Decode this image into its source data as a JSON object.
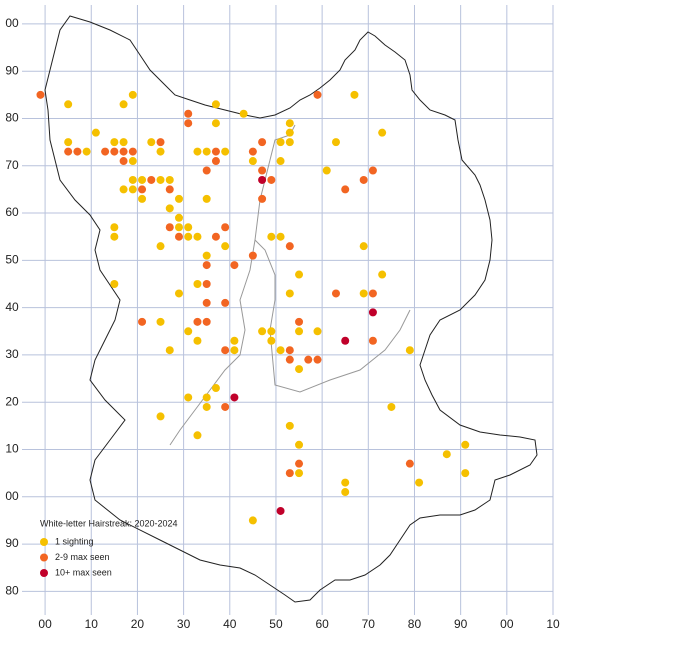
{
  "chart_data": {
    "type": "scatter",
    "legend_title": "White-letter Hairstreak:  2020-2024",
    "xlim": [
      -5,
      110
    ],
    "ylim": [
      -25,
      104
    ],
    "xticks": [
      {
        "value": 0,
        "label": "00"
      },
      10,
      20,
      30,
      40,
      50,
      60,
      70,
      80,
      90,
      {
        "value": 100,
        "label": "00"
      },
      {
        "value": 110,
        "label": "10"
      }
    ],
    "yticks": [
      {
        "value": 100,
        "label": "00"
      },
      90,
      80,
      70,
      60,
      50,
      40,
      30,
      20,
      10,
      {
        "value": 0,
        "label": "00"
      },
      {
        "value": -10,
        "label": "90"
      },
      {
        "value": -20,
        "label": "80"
      }
    ],
    "grid": true,
    "series": [
      {
        "name": "1 sighting",
        "color": "#f5c000",
        "x": [
          5,
          5,
          9,
          11,
          15,
          17,
          17,
          19,
          19,
          19,
          21,
          19,
          17,
          21,
          23,
          25,
          25,
          27,
          29,
          29,
          29,
          31,
          31,
          33,
          27,
          15,
          15,
          15,
          25,
          29,
          33,
          35,
          33,
          35,
          37,
          37,
          39,
          43,
          45,
          35,
          31,
          33,
          27,
          25,
          31,
          35,
          35,
          37,
          33,
          25,
          39,
          41,
          41,
          47,
          49,
          49,
          51,
          49,
          51,
          53,
          53,
          53,
          51,
          51,
          55,
          53,
          55,
          55,
          59,
          53,
          55,
          55,
          61,
          63,
          67,
          69,
          69,
          73,
          73,
          75,
          79,
          81,
          87,
          91,
          91,
          65,
          65,
          45
        ],
        "values": [
          83,
          75,
          73,
          77,
          75,
          75,
          83,
          85,
          71,
          67,
          67,
          65,
          65,
          63,
          75,
          73,
          67,
          67,
          63,
          59,
          57,
          57,
          55,
          55,
          61,
          57,
          55,
          45,
          53,
          43,
          45,
          51,
          73,
          73,
          79,
          83,
          73,
          81,
          71,
          63,
          35,
          33,
          31,
          37,
          21,
          21,
          19,
          23,
          13,
          17,
          53,
          31,
          33,
          35,
          35,
          33,
          31,
          55,
          55,
          79,
          77,
          75,
          75,
          71,
          47,
          43,
          35,
          27,
          35,
          15,
          11,
          5,
          69,
          75,
          85,
          53,
          43,
          77,
          47,
          19,
          31,
          3,
          9,
          11,
          5,
          3,
          1,
          -5
        ]
      },
      {
        "name": "2-9 max seen",
        "color": "#f26522",
        "x": [
          -1,
          5,
          7,
          13,
          15,
          17,
          17,
          19,
          21,
          23,
          25,
          27,
          31,
          31,
          35,
          37,
          37,
          45,
          47,
          47,
          49,
          47,
          27,
          29,
          37,
          39,
          35,
          35,
          41,
          45,
          39,
          35,
          33,
          35,
          21,
          39,
          39,
          53,
          55,
          53,
          53,
          57,
          59,
          63,
          59,
          65,
          69,
          71,
          71,
          71,
          55,
          53,
          79
        ],
        "values": [
          85,
          73,
          73,
          73,
          73,
          73,
          71,
          73,
          65,
          67,
          75,
          65,
          81,
          79,
          69,
          73,
          71,
          73,
          75,
          69,
          67,
          63,
          57,
          55,
          55,
          57,
          49,
          45,
          49,
          51,
          41,
          41,
          37,
          37,
          37,
          31,
          19,
          53,
          37,
          31,
          29,
          29,
          29,
          43,
          85,
          65,
          67,
          69,
          43,
          33,
          7,
          5,
          7
        ]
      },
      {
        "name": "10+ max seen",
        "color": "#c0002a",
        "x": [
          47,
          71,
          65,
          41,
          51
        ],
        "values": [
          67,
          39,
          33,
          21,
          -3
        ]
      }
    ]
  }
}
